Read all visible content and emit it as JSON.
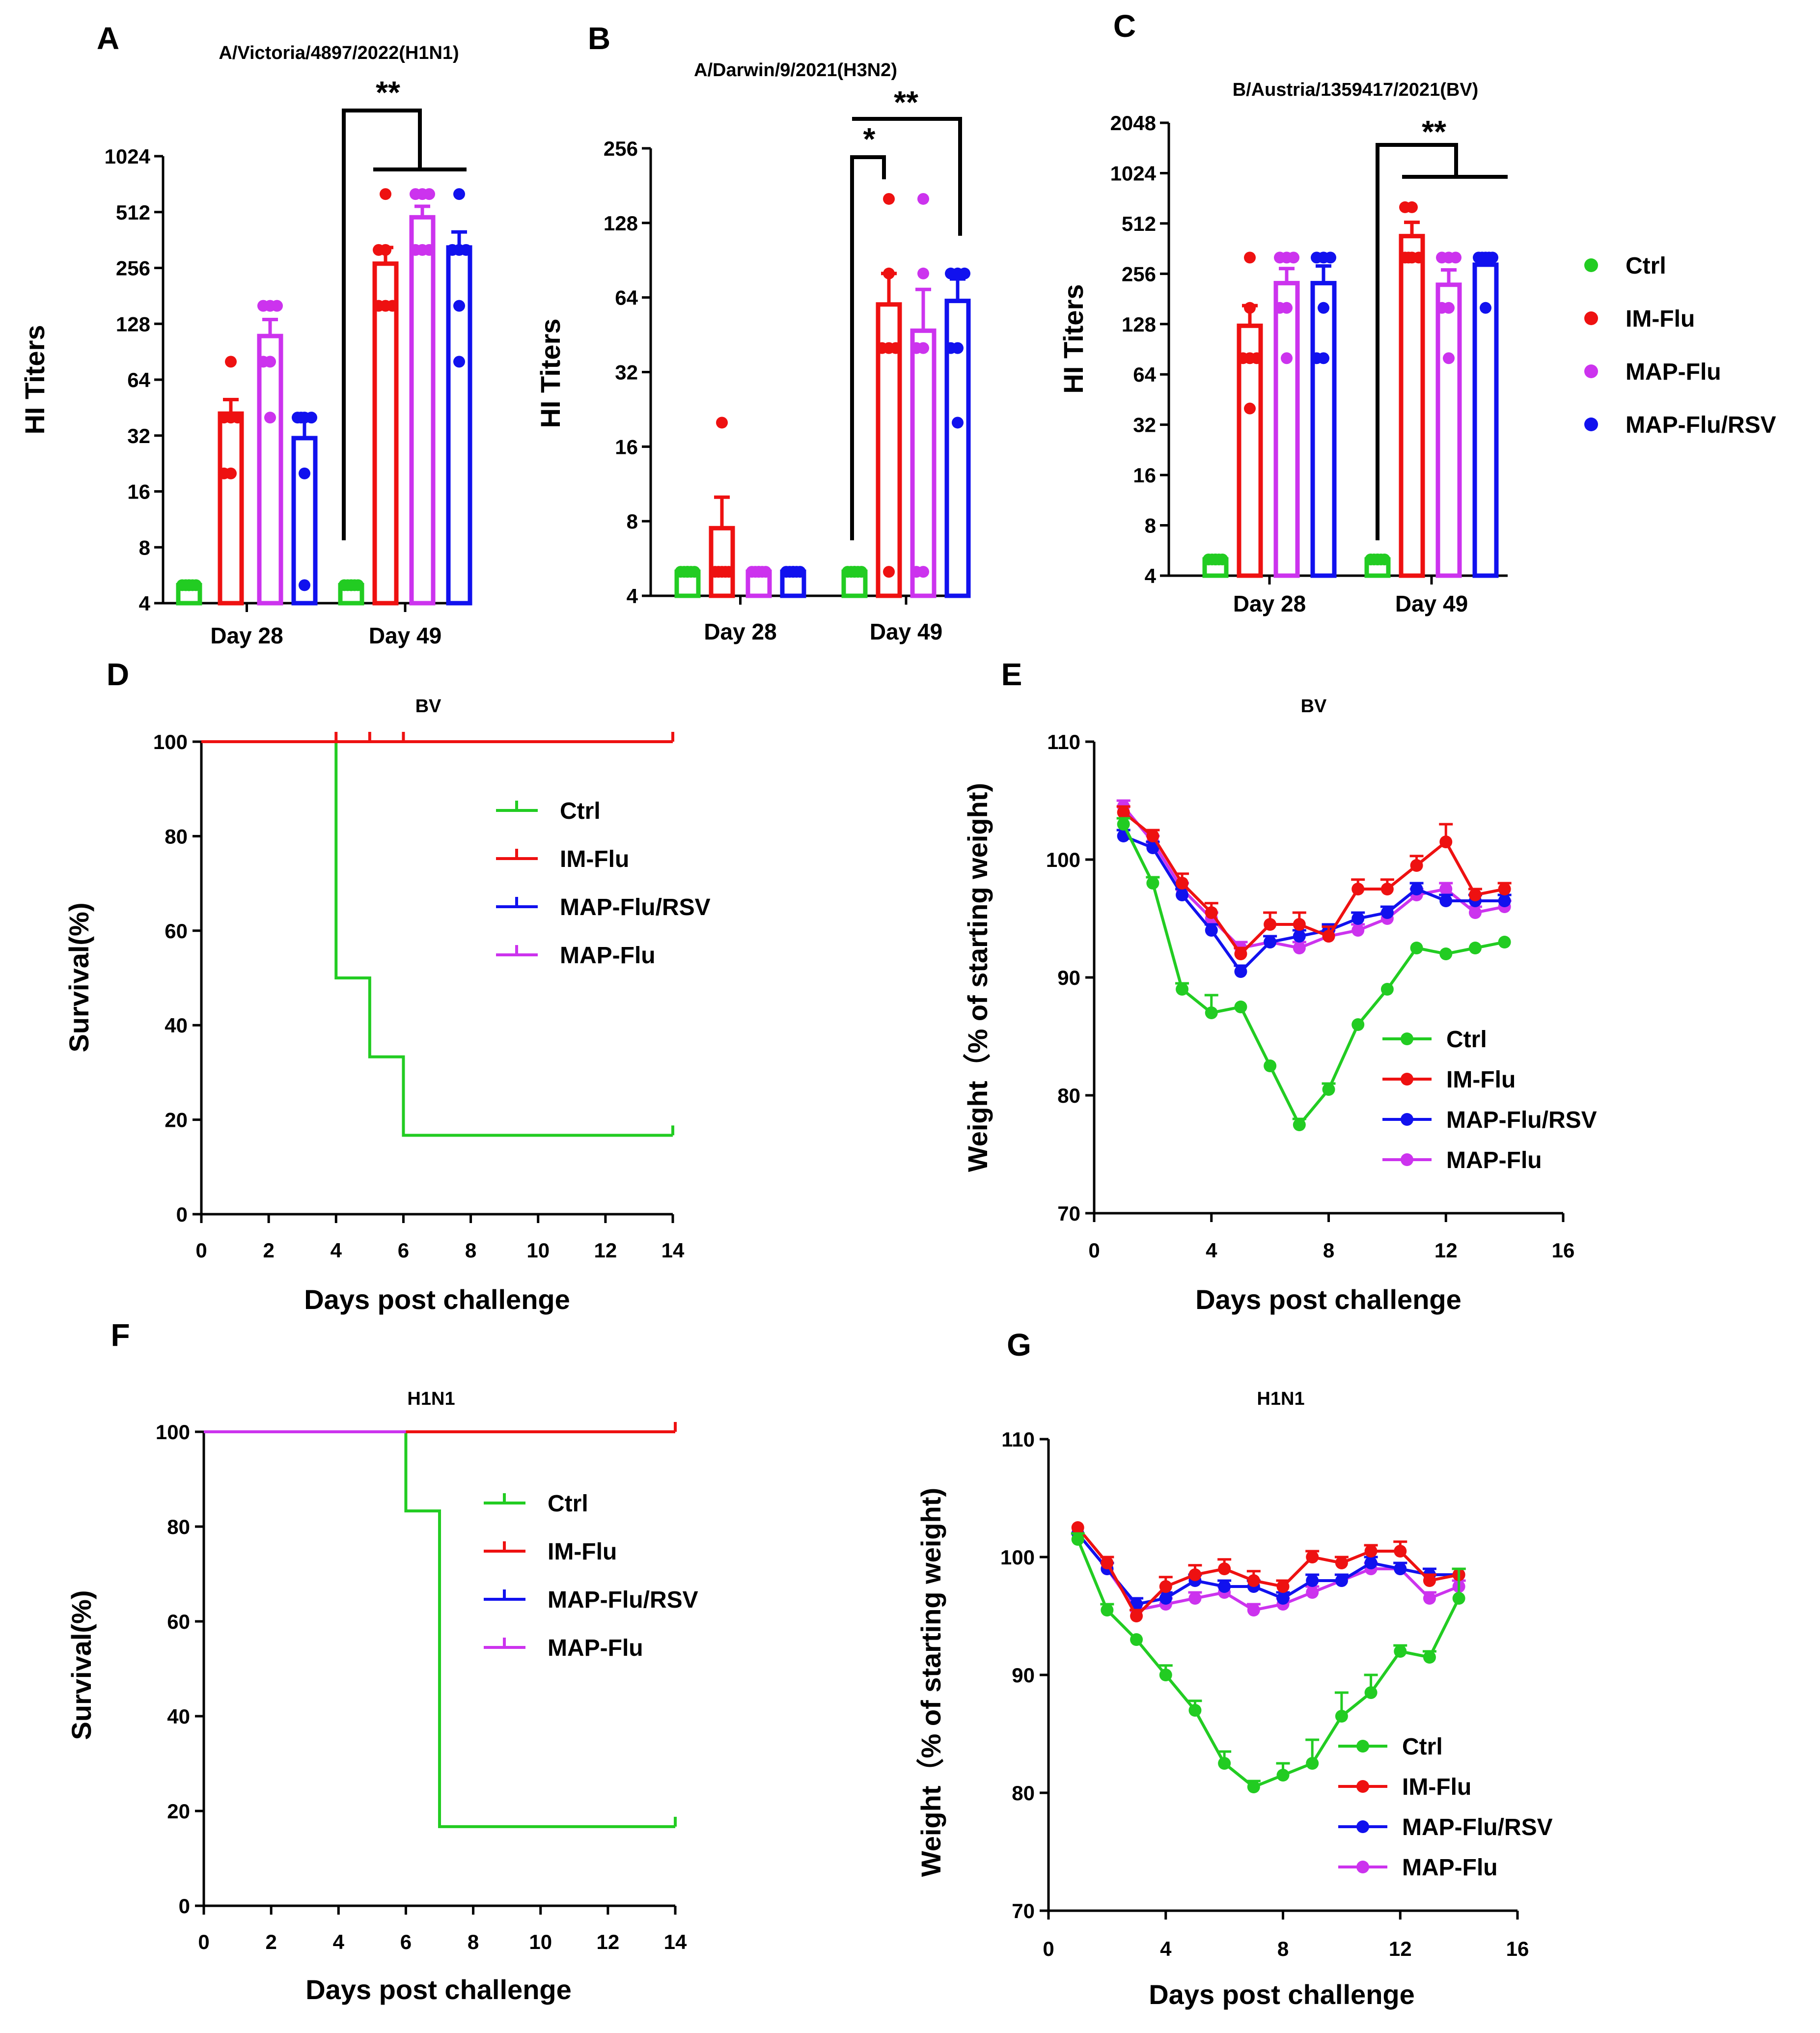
{
  "colors": {
    "Ctrl": "#22cc22",
    "IM-Flu": "#ee1111",
    "MAP-Flu": "#cc33ee",
    "MAP-Flu/RSV": "#1111ee"
  },
  "shared_legend": [
    "Ctrl",
    "IM-Flu",
    "MAP-Flu",
    "MAP-Flu/RSV"
  ],
  "chart_data": [
    {
      "id": "A",
      "type": "bar",
      "title": "A/Victoria/4897/2022(H1N1)",
      "ylabel": "HI Titers",
      "xlabel": "",
      "scale": "log2",
      "ylim": [
        4,
        1024
      ],
      "yticks": [
        "4",
        "8",
        "16",
        "32",
        "64",
        "128",
        "256",
        "512",
        "1024"
      ],
      "categories": [
        "Day 28",
        "Day 49"
      ],
      "series": [
        {
          "name": "Ctrl",
          "values": [
            5,
            5
          ],
          "errors": [
            0,
            0
          ],
          "points": [
            [
              5,
              5,
              5,
              5,
              5,
              5
            ],
            [
              5,
              5,
              5,
              5,
              5,
              5
            ]
          ]
        },
        {
          "name": "IM-Flu",
          "values": [
            42,
            270
          ],
          "errors": [
            8,
            60
          ],
          "points": [
            [
              80,
              40,
              40,
              40,
              20,
              20
            ],
            [
              640,
              320,
              320,
              160,
              160,
              160
            ]
          ]
        },
        {
          "name": "MAP-Flu",
          "values": [
            110,
            480
          ],
          "errors": [
            25,
            70
          ],
          "points": [
            [
              160,
              160,
              160,
              80,
              80,
              40
            ],
            [
              640,
              640,
              640,
              320,
              320,
              320
            ]
          ]
        },
        {
          "name": "MAP-Flu/RSV",
          "values": [
            31,
            330
          ],
          "errors": [
            8,
            70
          ],
          "points": [
            [
              40,
              40,
              40,
              40,
              20,
              5
            ],
            [
              640,
              320,
              320,
              320,
              160,
              80
            ]
          ]
        }
      ],
      "significance": [
        "**"
      ]
    },
    {
      "id": "B",
      "type": "bar",
      "title": "A/Darwin/9/2021(H3N2)",
      "ylabel": "HI Titers",
      "xlabel": "",
      "scale": "log2",
      "ylim": [
        4,
        256
      ],
      "yticks": [
        "4",
        "8",
        "16",
        "32",
        "64",
        "128",
        "256"
      ],
      "categories": [
        "Day 28",
        "Day 49"
      ],
      "series": [
        {
          "name": "Ctrl",
          "values": [
            5,
            5
          ],
          "errors": [
            0,
            0
          ],
          "points": [
            [
              5,
              5,
              5,
              5,
              5,
              5
            ],
            [
              5,
              5,
              5,
              5,
              5,
              5
            ]
          ]
        },
        {
          "name": "IM-Flu",
          "values": [
            7.5,
            60
          ],
          "errors": [
            2.5,
            20
          ],
          "points": [
            [
              20,
              5,
              5,
              5,
              5,
              5
            ],
            [
              160,
              80,
              40,
              40,
              40,
              5
            ]
          ]
        },
        {
          "name": "MAP-Flu",
          "values": [
            5,
            47
          ],
          "errors": [
            0,
            22
          ],
          "points": [
            [
              5,
              5,
              5,
              5,
              5,
              5
            ],
            [
              160,
              80,
              40,
              40,
              5,
              5
            ]
          ]
        },
        {
          "name": "MAP-Flu/RSV",
          "values": [
            5,
            62
          ],
          "errors": [
            0,
            14
          ],
          "points": [
            [
              5,
              5,
              5,
              5,
              5,
              5
            ],
            [
              80,
              80,
              80,
              40,
              40,
              20
            ]
          ]
        }
      ],
      "significance": [
        "*",
        "**"
      ]
    },
    {
      "id": "C",
      "type": "bar",
      "title": "B/Austria/1359417/2021(BV)",
      "ylabel": "HI Titers",
      "xlabel": "",
      "scale": "log2",
      "ylim": [
        4,
        2048
      ],
      "yticks": [
        "4",
        "8",
        "16",
        "32",
        "64",
        "128",
        "256",
        "512",
        "1024",
        "2048"
      ],
      "categories": [
        "Day 28",
        "Day 49"
      ],
      "series": [
        {
          "name": "Ctrl",
          "values": [
            5,
            5
          ],
          "errors": [
            0,
            0
          ],
          "points": [
            [
              5,
              5,
              5,
              5,
              5,
              5
            ],
            [
              5,
              5,
              5,
              5,
              5,
              5
            ]
          ]
        },
        {
          "name": "IM-Flu",
          "values": [
            125,
            430
          ],
          "errors": [
            40,
            90
          ],
          "points": [
            [
              320,
              160,
              80,
              80,
              80,
              40
            ],
            [
              640,
              640,
              320,
              320,
              320,
              320
            ]
          ]
        },
        {
          "name": "MAP-Flu",
          "values": [
            225,
            220
          ],
          "errors": [
            50,
            50
          ],
          "points": [
            [
              320,
              320,
              320,
              160,
              160,
              80
            ],
            [
              320,
              320,
              320,
              160,
              160,
              80
            ]
          ]
        },
        {
          "name": "MAP-Flu/RSV",
          "values": [
            225,
            290
          ],
          "errors": [
            60,
            30
          ],
          "points": [
            [
              320,
              320,
              320,
              160,
              80,
              80
            ],
            [
              320,
              320,
              320,
              320,
              320,
              160
            ]
          ]
        }
      ],
      "significance": [
        "**"
      ]
    },
    {
      "id": "D",
      "type": "line",
      "subtype": "survival-step",
      "title": "BV",
      "xlabel": "Days post challenge",
      "ylabel": "Survival(%)",
      "xlim": [
        0,
        14
      ],
      "ylim": [
        0,
        100
      ],
      "xticks": [
        "0",
        "2",
        "4",
        "6",
        "8",
        "10",
        "12",
        "14"
      ],
      "yticks": [
        "0",
        "20",
        "40",
        "60",
        "80",
        "100"
      ],
      "legend": [
        "Ctrl",
        "IM-Flu",
        "MAP-Flu/RSV",
        "MAP-Flu"
      ],
      "series": [
        {
          "name": "Ctrl",
          "x": [
            0,
            4,
            5,
            6,
            14
          ],
          "y": [
            100,
            50,
            33.3,
            16.7,
            16.7
          ]
        },
        {
          "name": "MAP-Flu/RSV",
          "x": [
            0,
            14
          ],
          "y": [
            100,
            100
          ]
        },
        {
          "name": "MAP-Flu",
          "x": [
            0,
            14
          ],
          "y": [
            100,
            100
          ]
        },
        {
          "name": "IM-Flu",
          "x": [
            0,
            14
          ],
          "y": [
            100,
            100
          ],
          "censor": [
            4,
            5,
            6,
            14
          ]
        }
      ]
    },
    {
      "id": "E",
      "type": "line",
      "title": "BV",
      "xlabel": "Days post challenge",
      "ylabel": "Weight（% of starting weight)",
      "xlim": [
        0,
        16
      ],
      "ylim": [
        70,
        110
      ],
      "xticks": [
        "0",
        "4",
        "8",
        "12",
        "16"
      ],
      "yticks": [
        "70",
        "80",
        "90",
        "100",
        "110"
      ],
      "legend": [
        "Ctrl",
        "IM-Flu",
        "MAP-Flu/RSV",
        "MAP-Flu"
      ],
      "x": [
        1,
        2,
        3,
        4,
        5,
        6,
        7,
        8,
        9,
        10,
        11,
        12,
        13,
        14
      ],
      "series": [
        {
          "name": "Ctrl",
          "values": [
            103,
            98,
            89,
            87,
            87.5,
            82.5,
            77.5,
            80.5,
            86,
            89,
            92.5,
            92,
            92.5,
            93
          ],
          "errors": [
            0.5,
            0.5,
            0.5,
            1.5,
            0.3,
            0.3,
            0.5,
            0.5,
            0.3,
            0.3,
            0.3,
            0.3,
            0.3,
            0.3
          ]
        },
        {
          "name": "IM-Flu",
          "values": [
            104,
            102,
            98,
            95.5,
            92,
            94.5,
            94.5,
            93.5,
            97.5,
            97.5,
            99.5,
            101.5,
            97,
            97.5
          ],
          "errors": [
            0.5,
            0.5,
            0.8,
            0.8,
            0.5,
            1,
            1,
            0.8,
            0.8,
            0.8,
            0.8,
            1.5,
            0.5,
            0.5
          ]
        },
        {
          "name": "MAP-Flu/RSV",
          "values": [
            102,
            101,
            97,
            94,
            90.5,
            93,
            93.5,
            94,
            95,
            95.5,
            97.5,
            96.5,
            96.5,
            96.5
          ],
          "errors": [
            0.5,
            0.5,
            0.5,
            0.5,
            0.5,
            0.5,
            0.5,
            0.5,
            0.5,
            0.5,
            0.5,
            0.5,
            0.5,
            0.5
          ]
        },
        {
          "name": "MAP-Flu",
          "values": [
            104.5,
            101.5,
            97.5,
            95,
            92.5,
            93,
            92.5,
            93.5,
            94,
            95,
            97,
            97.5,
            95.5,
            96
          ],
          "errors": [
            0.5,
            0.5,
            0.5,
            0.5,
            0.5,
            0.5,
            0.5,
            0.5,
            0.5,
            0.5,
            0.5,
            0.5,
            0.5,
            0.5
          ]
        }
      ]
    },
    {
      "id": "F",
      "type": "line",
      "subtype": "survival-step",
      "title": "H1N1",
      "xlabel": "Days post challenge",
      "ylabel": "Survival(%)",
      "xlim": [
        0,
        14
      ],
      "ylim": [
        0,
        100
      ],
      "xticks": [
        "0",
        "2",
        "4",
        "6",
        "8",
        "10",
        "12",
        "14"
      ],
      "yticks": [
        "0",
        "20",
        "40",
        "60",
        "80",
        "100"
      ],
      "legend": [
        "Ctrl",
        "IM-Flu",
        "MAP-Flu/RSV",
        "MAP-Flu"
      ],
      "series": [
        {
          "name": "Ctrl",
          "x": [
            0,
            6,
            7,
            14
          ],
          "y": [
            100,
            83.3,
            16.7,
            16.7
          ]
        },
        {
          "name": "MAP-Flu/RSV",
          "x": [
            0,
            14
          ],
          "y": [
            100,
            100
          ]
        },
        {
          "name": "MAP-Flu",
          "x": [
            0,
            14
          ],
          "y": [
            100,
            100
          ]
        },
        {
          "name": "IM-Flu",
          "x": [
            6,
            14
          ],
          "y": [
            100,
            100
          ],
          "censor": [
            14
          ]
        }
      ]
    },
    {
      "id": "G",
      "type": "line",
      "title": "H1N1",
      "xlabel": "Days post challenge",
      "ylabel": "Weight（% of starting weight)",
      "xlim": [
        0,
        16
      ],
      "ylim": [
        70,
        110
      ],
      "xticks": [
        "0",
        "4",
        "8",
        "12",
        "16"
      ],
      "yticks": [
        "70",
        "80",
        "90",
        "100",
        "110"
      ],
      "legend": [
        "Ctrl",
        "IM-Flu",
        "MAP-Flu/RSV",
        "MAP-Flu"
      ],
      "x": [
        1,
        2,
        3,
        4,
        5,
        6,
        7,
        8,
        9,
        10,
        11,
        12,
        13,
        14
      ],
      "series": [
        {
          "name": "Ctrl",
          "values": [
            101.5,
            95.5,
            93,
            90,
            87,
            82.5,
            80.5,
            81.5,
            82.5,
            86.5,
            88.5,
            92,
            91.5,
            96.5
          ],
          "errors": [
            0.5,
            0.5,
            0.3,
            0.8,
            0.8,
            1,
            0.5,
            1,
            2,
            2,
            1.5,
            0.5,
            0.5,
            2.5
          ]
        },
        {
          "name": "IM-Flu",
          "values": [
            102.5,
            99.5,
            95,
            97.5,
            98.5,
            99,
            98,
            97.5,
            100,
            99.5,
            100.5,
            100.5,
            98,
            98.5
          ],
          "errors": [
            0.3,
            0.5,
            0.5,
            0.8,
            0.8,
            0.8,
            0.8,
            0.5,
            0.5,
            0.5,
            0.5,
            0.8,
            0.5,
            0.5
          ]
        },
        {
          "name": "MAP-Flu/RSV",
          "values": [
            102,
            99,
            96,
            96.5,
            98,
            97.5,
            97.5,
            96.5,
            98,
            98,
            99.5,
            99,
            98.5,
            98.5
          ],
          "errors": [
            0.3,
            0.5,
            0.5,
            0.5,
            0.5,
            0.5,
            0.5,
            0.5,
            0.5,
            0.5,
            0.5,
            0.5,
            0.5,
            0.5
          ]
        },
        {
          "name": "MAP-Flu",
          "values": [
            102,
            99,
            95.5,
            96,
            96.5,
            97,
            95.5,
            96,
            97,
            98,
            99,
            99,
            96.5,
            97.5
          ],
          "errors": [
            0.3,
            0.5,
            0.5,
            0.5,
            0.5,
            0.5,
            0.5,
            0.5,
            0.5,
            0.5,
            0.5,
            0.5,
            0.5,
            0.5
          ]
        }
      ]
    }
  ]
}
